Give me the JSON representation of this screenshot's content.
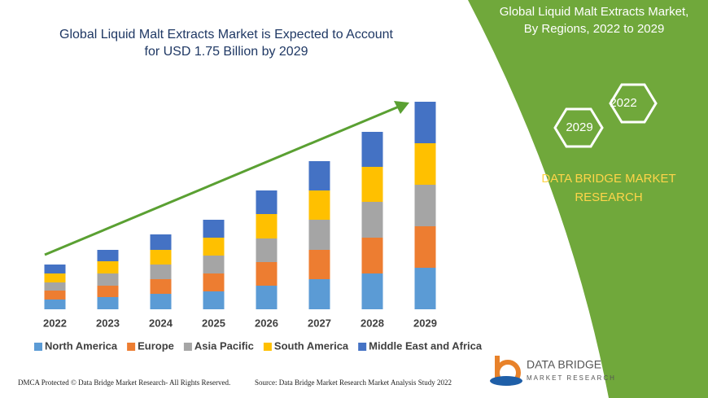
{
  "chart_data": {
    "type": "bar",
    "stacked": true,
    "title": [
      "Global Liquid Malt Extracts Market is Expected to Account",
      "for USD 1.75 Billion by 2029"
    ],
    "categories": [
      "2022",
      "2023",
      "2024",
      "2025",
      "2026",
      "2027",
      "2028",
      "2029"
    ],
    "series": [
      {
        "name": "North America",
        "color": "#5b9bd5",
        "values": [
          12,
          15,
          19,
          22,
          29,
          37,
          44,
          51
        ]
      },
      {
        "name": "Europe",
        "color": "#ed7d31",
        "values": [
          11,
          14,
          18,
          22,
          29,
          36,
          44,
          51
        ]
      },
      {
        "name": "Asia Pacific",
        "color": "#a5a5a5",
        "values": [
          10,
          15,
          18,
          22,
          29,
          37,
          44,
          51
        ]
      },
      {
        "name": "South America",
        "color": "#ffc000",
        "values": [
          11,
          15,
          18,
          22,
          30,
          36,
          43,
          51
        ]
      },
      {
        "name": "Middle East and Africa",
        "color": "#4472c4",
        "values": [
          11,
          14,
          19,
          22,
          29,
          36,
          43,
          51
        ]
      }
    ],
    "ylim": [
      0,
      260
    ],
    "legend": "bottom"
  },
  "side": {
    "heading": [
      "Global Liquid Malt Extracts Market,",
      "By Regions, 2022 to 2029"
    ],
    "hexagons": [
      "2022",
      "2029"
    ],
    "brand": [
      "DATA BRIDGE MARKET",
      "RESEARCH"
    ],
    "logo": [
      "DATA BRIDGE",
      "MARKET RESEARCH"
    ]
  },
  "footer": {
    "left": "DMCA Protected © Data Bridge Market Research- All Rights Reserved.",
    "right": "Source: Data Bridge Market Research Market Analysis Study 2022"
  }
}
